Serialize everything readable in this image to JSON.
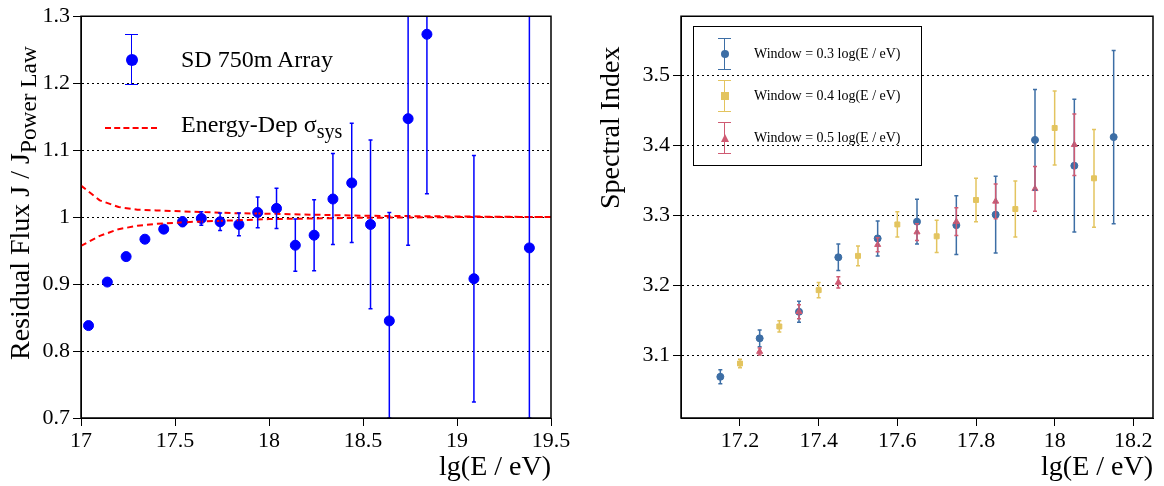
{
  "chart_data": [
    {
      "type": "scatter",
      "xlabel": "lg(E / eV)",
      "ylabel": "Residual Flux  J / J$_{Power Law}$",
      "xlim": [
        17,
        19.5
      ],
      "xticks": [
        17,
        17.5,
        18,
        18.5,
        19,
        19.5
      ],
      "ylim": [
        0.7,
        1.3
      ],
      "yticks": [
        0.7,
        0.8,
        0.9,
        1,
        1.1,
        1.2,
        1.3
      ],
      "grid": "y",
      "legend": "top left",
      "series": [
        {
          "name": "SD 750m Array",
          "type": "scatter",
          "marker": "circle",
          "color": "#0000ff",
          "x": [
            17.04,
            17.14,
            17.24,
            17.34,
            17.44,
            17.54,
            17.64,
            17.74,
            17.84,
            17.94,
            18.04,
            18.14,
            18.24,
            18.34,
            18.44,
            18.54,
            18.64,
            18.74,
            18.84,
            19.09,
            19.385
          ],
          "values": [
            0.838,
            0.903,
            0.941,
            0.967,
            0.982,
            0.993,
            0.998,
            0.993,
            0.989,
            1.007,
            1.013,
            0.958,
            0.973,
            1.027,
            1.051,
            0.989,
            0.845,
            1.147,
            1.273,
            0.908,
            0.954
          ],
          "errors": [
            null,
            null,
            null,
            null,
            0.005,
            0.007,
            0.01,
            0.013,
            0.017,
            0.023,
            0.03,
            0.039,
            0.053,
            0.068,
            0.089,
            0.126,
            [
              0.7,
              1.007
            ],
            [
              0.958,
              1.3
            ],
            [
              1.035,
              1.3
            ],
            0.184,
            [
              0.7,
              1.3
            ]
          ]
        },
        {
          "name": "Energy-Dep σ$_{sys}$",
          "type": "line",
          "line_style": "dashed",
          "marker": "none",
          "color": "#ff0000",
          "x": [
            17.0,
            17.1,
            17.2,
            17.3,
            17.4,
            17.6,
            17.8,
            18.0,
            18.5,
            19.0,
            19.5
          ],
          "values": [
            1.047,
            1.025,
            1.015,
            1.011,
            1.01,
            1.008,
            1.006,
            1.005,
            1.002,
            1.001,
            1.0
          ]
        },
        {
          "type": "line",
          "line_style": "dashed",
          "marker": "none",
          "color": "#ff0000",
          "x": [
            17.0,
            17.1,
            17.2,
            17.3,
            17.4,
            17.6,
            17.8,
            18.0,
            18.5,
            19.0,
            19.5
          ],
          "values": [
            0.957,
            0.972,
            0.982,
            0.987,
            0.99,
            0.993,
            0.995,
            0.997,
            0.999,
            1.0,
            1.0
          ]
        }
      ]
    },
    {
      "type": "scatter",
      "xlabel": "lg(E / eV)",
      "ylabel": "Spectral Index",
      "xlim": [
        17.05,
        18.25
      ],
      "xticks": [
        17.2,
        17.4,
        17.6,
        17.8,
        18,
        18.2
      ],
      "ylim": [
        3.01,
        3.585
      ],
      "yticks": [
        3.1,
        3.2,
        3.3,
        3.4,
        3.5
      ],
      "grid": "y",
      "legend": "top left",
      "series": [
        {
          "name": "Window = 0.3 log(E / eV)",
          "type": "scatter",
          "marker": "circle",
          "color": "#3d6ea5",
          "x": [
            17.15,
            17.25,
            17.35,
            17.45,
            17.55,
            17.65,
            17.75,
            17.85,
            17.95,
            18.05,
            18.15
          ],
          "values": [
            3.069,
            3.124,
            3.162,
            3.24,
            3.267,
            3.291,
            3.286,
            3.301,
            3.408,
            3.371,
            3.412
          ],
          "errors": [
            0.01,
            0.012,
            0.015,
            0.019,
            0.025,
            0.032,
            0.042,
            0.055,
            0.072,
            0.095,
            0.124
          ]
        },
        {
          "name": "Window = 0.4 log(E / eV)",
          "type": "scatter",
          "marker": "square",
          "color": "#e3c45f",
          "x": [
            17.2,
            17.3,
            17.4,
            17.5,
            17.6,
            17.7,
            17.8,
            17.9,
            18.0,
            18.1
          ],
          "values": [
            3.088,
            3.141,
            3.193,
            3.242,
            3.287,
            3.27,
            3.322,
            3.309,
            3.425,
            3.353
          ],
          "errors": [
            0.006,
            0.008,
            0.011,
            0.014,
            0.018,
            0.023,
            0.031,
            0.04,
            0.053,
            0.07
          ]
        },
        {
          "name": "Window = 0.5 log(E / eV)",
          "type": "scatter",
          "marker": "triangle",
          "color": "#cf5a72",
          "x": [
            17.25,
            17.35,
            17.45,
            17.55,
            17.65,
            17.75,
            17.85,
            17.95,
            18.05
          ],
          "values": [
            3.105,
            3.162,
            3.204,
            3.258,
            3.276,
            3.291,
            3.32,
            3.338,
            3.401
          ],
          "errors": [
            0.005,
            0.01,
            0.008,
            0.01,
            0.012,
            0.02,
            0.025,
            0.032,
            0.044
          ]
        }
      ]
    }
  ]
}
